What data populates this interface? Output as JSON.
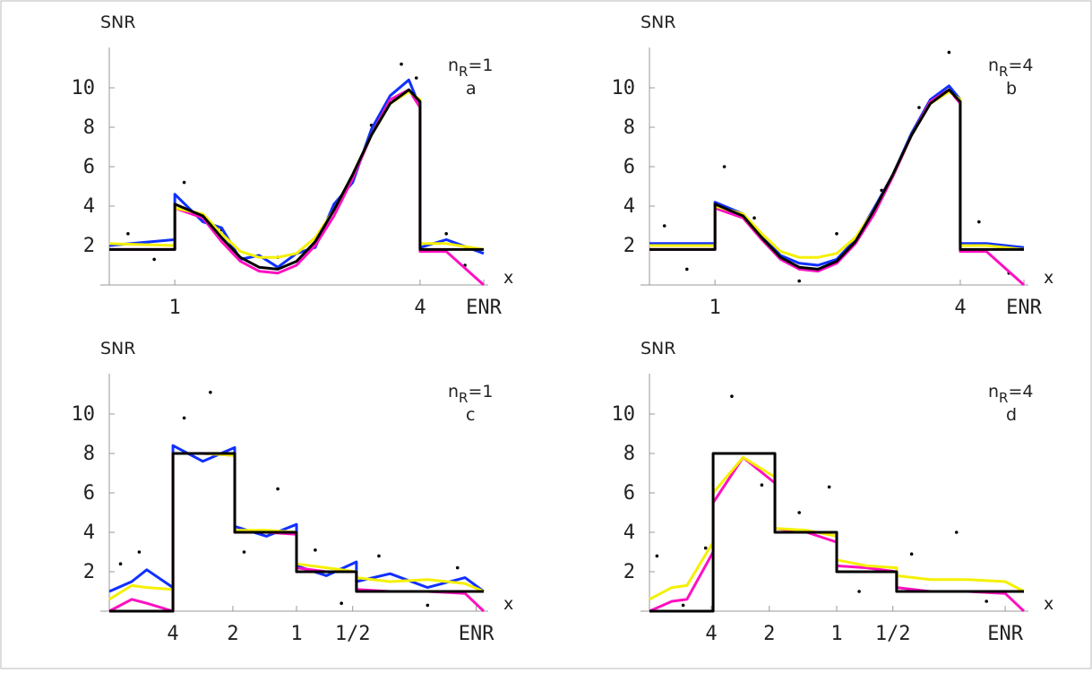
{
  "chart_data": [
    {
      "type": "line",
      "ylabel": "SNR",
      "xlabel": "x",
      "panel": "a",
      "annotation": {
        "base": "n",
        "sub": "R",
        "rest": "=1"
      },
      "xlim": [
        0,
        1
      ],
      "ylim": [
        0,
        12.5
      ],
      "yticks": [
        2,
        4,
        6,
        8,
        10
      ],
      "xticks": [
        {
          "value": 0.175,
          "label": "1"
        },
        {
          "value": 0.83,
          "label": "4"
        },
        {
          "value": 1.0,
          "label": "ENR"
        }
      ],
      "x": [
        0,
        0.175,
        0.175,
        0.25,
        0.3,
        0.35,
        0.4,
        0.45,
        0.5,
        0.55,
        0.6,
        0.65,
        0.7,
        0.75,
        0.8,
        0.83,
        0.83,
        0.9,
        1.0
      ],
      "series": [
        {
          "color": "#1030ff",
          "values": [
            2.0,
            2.3,
            4.6,
            3.2,
            2.9,
            1.3,
            1.5,
            0.9,
            1.6,
            1.9,
            4.1,
            5.2,
            7.9,
            9.6,
            10.4,
            9.0,
            1.9,
            2.3,
            1.6
          ]
        },
        {
          "color": "#ff10c0",
          "values": [
            1.8,
            1.8,
            3.9,
            3.4,
            2.2,
            1.2,
            0.7,
            0.6,
            1.0,
            2.0,
            3.5,
            5.4,
            7.6,
            9.4,
            9.9,
            9.0,
            1.7,
            1.7,
            0
          ]
        },
        {
          "color": "#f5f000",
          "values": [
            2.1,
            2.0,
            3.9,
            3.6,
            2.6,
            1.7,
            1.4,
            1.4,
            1.6,
            2.4,
            3.8,
            5.6,
            7.6,
            9.2,
            9.8,
            9.4,
            2.1,
            2.1,
            1.8
          ]
        },
        {
          "color": "#000000",
          "values": [
            1.8,
            1.8,
            4.1,
            3.5,
            2.4,
            1.4,
            0.9,
            0.8,
            1.2,
            2.2,
            3.8,
            5.6,
            7.6,
            9.2,
            9.9,
            9.3,
            1.8,
            1.8,
            1.8
          ]
        }
      ],
      "points": {
        "x": [
          0.05,
          0.12,
          0.2,
          0.3,
          0.45,
          0.55,
          0.7,
          0.78,
          0.82,
          0.9,
          0.95
        ],
        "y": [
          2.6,
          1.3,
          5.2,
          2.8,
          1.4,
          2.0,
          8.1,
          11.2,
          10.5,
          2.6,
          1.0
        ]
      }
    },
    {
      "type": "line",
      "ylabel": "SNR",
      "xlabel": "x",
      "panel": "b",
      "annotation": {
        "base": "n",
        "sub": "R",
        "rest": "=4"
      },
      "xlim": [
        0,
        1
      ],
      "ylim": [
        0,
        12.5
      ],
      "yticks": [
        2,
        4,
        6,
        8,
        10
      ],
      "xticks": [
        {
          "value": 0.175,
          "label": "1"
        },
        {
          "value": 0.83,
          "label": "4"
        },
        {
          "value": 1.0,
          "label": "ENR"
        }
      ],
      "x": [
        0,
        0.175,
        0.175,
        0.25,
        0.3,
        0.35,
        0.4,
        0.45,
        0.5,
        0.55,
        0.6,
        0.65,
        0.7,
        0.75,
        0.8,
        0.83,
        0.83,
        0.9,
        1.0
      ],
      "series": [
        {
          "color": "#1030ff",
          "values": [
            2.1,
            2.1,
            4.2,
            3.6,
            2.5,
            1.5,
            1.1,
            1.0,
            1.3,
            2.3,
            3.9,
            5.6,
            7.7,
            9.4,
            10.1,
            9.4,
            2.1,
            2.1,
            1.9
          ]
        },
        {
          "color": "#ff10c0",
          "values": [
            1.8,
            1.8,
            3.9,
            3.4,
            2.3,
            1.3,
            0.8,
            0.7,
            1.1,
            2.1,
            3.6,
            5.5,
            7.6,
            9.3,
            9.9,
            9.2,
            1.7,
            1.7,
            0
          ]
        },
        {
          "color": "#f5f000",
          "values": [
            2.0,
            2.0,
            4.0,
            3.6,
            2.6,
            1.7,
            1.4,
            1.4,
            1.6,
            2.4,
            3.8,
            5.6,
            7.6,
            9.2,
            9.8,
            9.4,
            2.0,
            2.0,
            1.8
          ]
        },
        {
          "color": "#000000",
          "values": [
            1.8,
            1.8,
            4.1,
            3.5,
            2.4,
            1.4,
            0.9,
            0.8,
            1.2,
            2.2,
            3.8,
            5.6,
            7.6,
            9.2,
            9.9,
            9.3,
            1.8,
            1.8,
            1.8
          ]
        }
      ],
      "points": {
        "x": [
          0.04,
          0.1,
          0.2,
          0.28,
          0.4,
          0.5,
          0.62,
          0.72,
          0.8,
          0.88,
          0.96
        ],
        "y": [
          3.0,
          0.8,
          6.0,
          3.4,
          0.2,
          2.6,
          4.8,
          9.0,
          11.8,
          3.2,
          0.6
        ]
      }
    },
    {
      "type": "line",
      "ylabel": "SNR",
      "xlabel": "x",
      "panel": "c",
      "annotation": {
        "base": "n",
        "sub": "R",
        "rest": "=1"
      },
      "xlim": [
        0,
        1
      ],
      "ylim": [
        0,
        12.5
      ],
      "yticks": [
        2,
        4,
        6,
        8,
        10
      ],
      "xticks": [
        {
          "value": 0.17,
          "label": "4"
        },
        {
          "value": 0.33,
          "label": "2"
        },
        {
          "value": 0.5,
          "label": "1"
        },
        {
          "value": 0.65,
          "label": "1/2"
        },
        {
          "value": 0.98,
          "label": "ENR"
        }
      ],
      "x": [
        0,
        0.06,
        0.1,
        0.17,
        0.17,
        0.25,
        0.335,
        0.335,
        0.42,
        0.5,
        0.5,
        0.58,
        0.66,
        0.66,
        0.75,
        0.85,
        0.95,
        1.0
      ],
      "series": [
        {
          "color": "#1030ff",
          "values": [
            1.0,
            1.5,
            2.1,
            1.2,
            8.4,
            7.6,
            8.3,
            4.3,
            3.8,
            4.4,
            2.3,
            1.8,
            2.5,
            1.5,
            1.9,
            1.2,
            1.7,
            1.0
          ]
        },
        {
          "color": "#ff10c0",
          "values": [
            0,
            0.6,
            0.4,
            0,
            8,
            8,
            7.9,
            4,
            4,
            3.9,
            2.2,
            2,
            2,
            1.1,
            1,
            1,
            0.9,
            0
          ]
        },
        {
          "color": "#f5f000",
          "values": [
            0.6,
            1.3,
            1.2,
            1.1,
            8,
            8,
            7.9,
            4.1,
            4.1,
            4.0,
            2.4,
            2.2,
            2.0,
            1.7,
            1.5,
            1.6,
            1.4,
            1.0
          ]
        },
        {
          "color": "#000000",
          "values": [
            0,
            0,
            0,
            0,
            8,
            8,
            8,
            4,
            4,
            4,
            2,
            2,
            2,
            1,
            1,
            1,
            1,
            1
          ]
        }
      ],
      "points": {
        "x": [
          0.03,
          0.08,
          0.2,
          0.27,
          0.36,
          0.45,
          0.55,
          0.62,
          0.72,
          0.85,
          0.93
        ],
        "y": [
          2.4,
          3.0,
          9.8,
          11.1,
          3.0,
          6.2,
          3.1,
          0.4,
          2.8,
          0.3,
          2.2
        ]
      }
    },
    {
      "type": "line",
      "ylabel": "SNR",
      "xlabel": "x",
      "panel": "d",
      "annotation": {
        "base": "n",
        "sub": "R",
        "rest": "=4"
      },
      "xlim": [
        0,
        1
      ],
      "ylim": [
        0,
        12.5
      ],
      "yticks": [
        2,
        4,
        6,
        8,
        10
      ],
      "xticks": [
        {
          "value": 0.165,
          "label": "4"
        },
        {
          "value": 0.32,
          "label": "2"
        },
        {
          "value": 0.5,
          "label": "1"
        },
        {
          "value": 0.65,
          "label": "1/2"
        },
        {
          "value": 0.95,
          "label": "ENR"
        }
      ],
      "x": [
        0,
        0.06,
        0.1,
        0.17,
        0.17,
        0.25,
        0.335,
        0.335,
        0.42,
        0.5,
        0.5,
        0.58,
        0.66,
        0.66,
        0.75,
        0.85,
        0.95,
        1.0
      ],
      "series": [
        {
          "color": "#ff10c0",
          "values": [
            0,
            0.5,
            0.6,
            3.0,
            5.5,
            7.8,
            6.5,
            4.2,
            4.0,
            3.5,
            2.3,
            2.2,
            2.0,
            1.2,
            1.0,
            1.0,
            0.9,
            0
          ]
        },
        {
          "color": "#f5f000",
          "values": [
            0.6,
            1.2,
            1.3,
            3.5,
            6.0,
            7.8,
            6.8,
            4.2,
            4.1,
            3.8,
            2.6,
            2.3,
            2.2,
            1.8,
            1.6,
            1.6,
            1.5,
            1.0
          ]
        },
        {
          "color": "#000000",
          "values": [
            0,
            0,
            0,
            0,
            8,
            8,
            8,
            4,
            4,
            4,
            2,
            2,
            2,
            1,
            1,
            1,
            1,
            1
          ]
        }
      ],
      "points": {
        "x": [
          0.02,
          0.09,
          0.15,
          0.22,
          0.3,
          0.4,
          0.48,
          0.56,
          0.7,
          0.82,
          0.9
        ],
        "y": [
          2.8,
          0.3,
          3.2,
          10.9,
          6.4,
          5.0,
          6.3,
          1.0,
          2.9,
          4.0,
          0.5
        ]
      }
    }
  ]
}
